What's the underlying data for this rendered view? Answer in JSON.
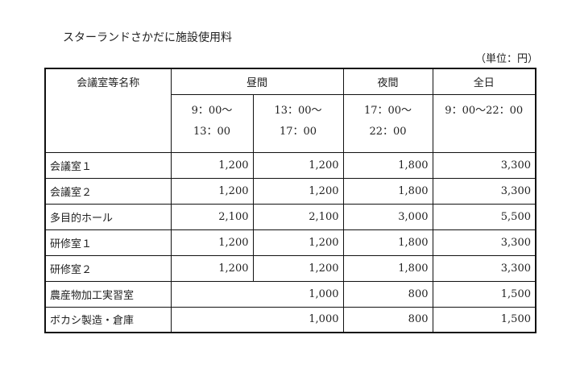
{
  "title": "スターランドさかだに施設使用料",
  "unit": "（単位：円）",
  "headers": {
    "name": "会議室等名称",
    "daytime": "昼間",
    "night": "夜間",
    "allday": "全日",
    "slots": [
      {
        "start": "9：00～",
        "end": "13：00"
      },
      {
        "start": "13：00～",
        "end": "17：00"
      },
      {
        "start": "17：00～",
        "end": "22：00"
      },
      {
        "start": "9：00～22：00",
        "end": ""
      }
    ]
  },
  "rows": [
    {
      "name": "会議室１",
      "am": "1,200",
      "pm": "1,200",
      "night": "1,800",
      "allday": "3,300"
    },
    {
      "name": "会議室２",
      "am": "1,200",
      "pm": "1,200",
      "night": "1,800",
      "allday": "3,300"
    },
    {
      "name": "多目的ホール",
      "am": "2,100",
      "pm": "2,100",
      "night": "3,000",
      "allday": "5,500"
    },
    {
      "name": "研修室１",
      "am": "1,200",
      "pm": "1,200",
      "night": "1,800",
      "allday": "3,300"
    },
    {
      "name": "研修室２",
      "am": "1,200",
      "pm": "1,200",
      "night": "1,800",
      "allday": "3,300"
    }
  ],
  "merged_rows": [
    {
      "name": "農産物加工実習室",
      "daytime": "1,000",
      "night": "800",
      "allday": "1,500"
    },
    {
      "name": "ボカシ製造・倉庫",
      "daytime": "1,000",
      "night": "800",
      "allday": "1,500"
    }
  ]
}
